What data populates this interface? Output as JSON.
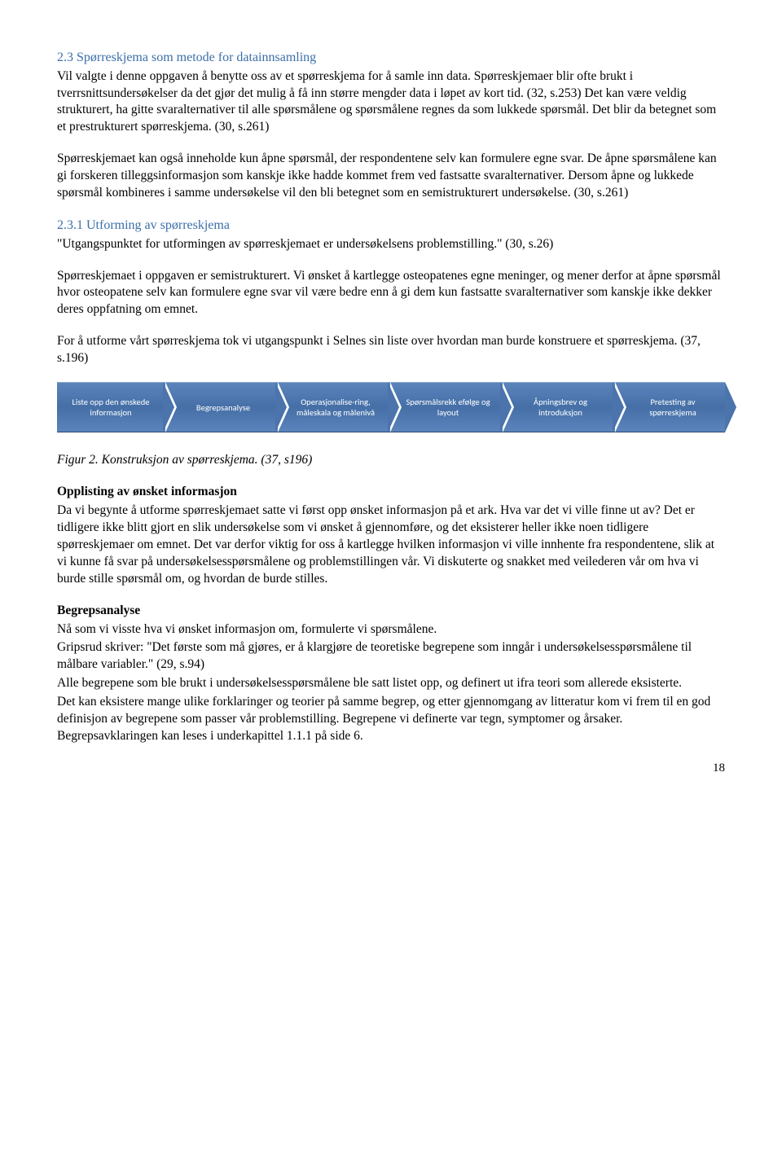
{
  "section1": {
    "heading": "2.3 Spørreskjema som metode for datainnsamling",
    "p1": "Vil valgte i denne oppgaven å benytte oss av et spørreskjema for å samle inn data. Spørreskjemaer blir ofte brukt i tverrsnittsundersøkelser da det gjør det mulig å få inn større mengder data i løpet av kort tid. (32, s.253) Det kan være veldig strukturert, ha gitte svaralternativer til alle spørsmålene og spørsmålene regnes da som lukkede spørsmål. Det blir da betegnet som et prestrukturert spørreskjema. (30, s.261)",
    "p2": "Spørreskjemaet kan også inneholde kun åpne spørsmål, der respondentene selv kan formulere egne svar. De åpne spørsmålene kan gi forskeren tilleggsinformasjon som kanskje ikke hadde kommet frem ved fastsatte svaralternativer. Dersom åpne og lukkede spørsmål kombineres i samme undersøkelse vil den bli betegnet som en semistrukturert undersøkelse. (30, s.261)"
  },
  "section2": {
    "heading": "2.3.1 Utforming av spørreskjema",
    "p1": "\"Utgangspunktet for utformingen av spørreskjemaet er undersøkelsens problemstilling.\" (30, s.26)",
    "p2": "Spørreskjemaet i oppgaven er semistrukturert. Vi ønsket å kartlegge osteopatenes egne meninger, og mener derfor at åpne spørsmål hvor osteopatene selv kan formulere egne svar vil være bedre enn å gi dem kun fastsatte svaralternativer som kanskje ikke dekker deres oppfatning om emnet.",
    "p3": "For å utforme vårt spørreskjema tok vi utgangspunkt i Selnes sin liste over hvordan man burde konstruere et spørreskjema. (37, s.196)"
  },
  "diagram": {
    "steps": [
      "Liste opp den ønskede informasjon",
      "Begrepsanalyse",
      "Operasjonalise-ring, måleskala og målenivå",
      "Spørsmålsrekk efølge og layout",
      "Åpningsbrev og introduksjon",
      "Pretesting av spørreskjema"
    ],
    "bg_gradient_top": "#5a84bb",
    "bg_gradient_mid": "#456fa6",
    "text_color": "#ffffff",
    "font_size": 10.5,
    "height": 62
  },
  "figure_caption": "Figur 2. Konstruksjon av spørreskjema. (37, s196)",
  "section3": {
    "heading": "Opplisting av ønsket informasjon",
    "p1": "Da vi begynte å utforme spørreskjemaet satte vi først opp ønsket informasjon på et ark. Hva var det vi ville finne ut av? Det er tidligere ikke blitt gjort en slik undersøkelse som vi ønsket å gjennomføre, og det eksisterer heller ikke noen tidligere spørreskjemaer om emnet. Det var derfor viktig for oss å kartlegge hvilken informasjon vi ville innhente fra respondentene, slik at vi kunne få svar på undersøkelsesspørsmålene og problemstillingen vår. Vi diskuterte og snakket med veilederen vår om hva vi burde stille spørsmål om, og hvordan de burde stilles."
  },
  "section4": {
    "heading": "Begrepsanalyse",
    "p1": "Nå som vi visste hva vi ønsket informasjon om, formulerte vi spørsmålene.",
    "p2": "Gripsrud skriver: \"Det første som må gjøres, er å klargjøre de teoretiske begrepene som inngår i undersøkelsesspørsmålene til målbare variabler.\" (29, s.94)",
    "p3": "Alle begrepene som ble brukt i undersøkelsesspørsmålene ble satt listet opp, og definert ut ifra teori som allerede eksisterte.",
    "p4": "Det kan eksistere mange ulike forklaringer og teorier på samme begrep, og etter gjennomgang av litteratur kom vi frem til en god definisjon av begrepene som passer vår problemstilling. Begrepene vi definerte var tegn, symptomer og årsaker. Begrepsavklaringen kan leses i underkapittel 1.1.1 på side 6."
  },
  "page_number": "18"
}
